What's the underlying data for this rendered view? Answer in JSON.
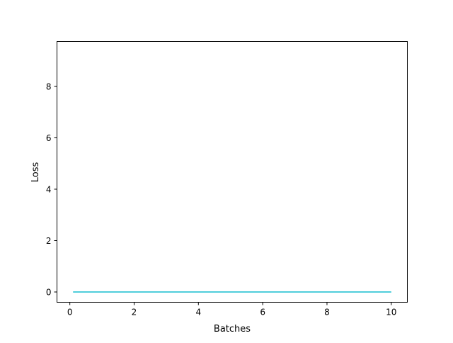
{
  "chart_data": {
    "type": "line",
    "title": "",
    "xlabel": "Batches",
    "ylabel": "Loss",
    "xlim": [
      -0.4,
      10.5
    ],
    "ylim": [
      -0.4,
      9.75
    ],
    "xticks": [
      0,
      2,
      4,
      6,
      8,
      10
    ],
    "yticks": [
      0,
      2,
      4,
      6,
      8
    ],
    "x_tick_labels": [
      "0",
      "2",
      "4",
      "6",
      "8",
      "10"
    ],
    "y_tick_labels": [
      "0",
      "2",
      "4",
      "6",
      "8"
    ],
    "grid": false,
    "series": [
      {
        "color": "#17becf",
        "x": [
          0.1,
          10.0
        ],
        "y": [
          0.0,
          0.0
        ]
      }
    ]
  }
}
